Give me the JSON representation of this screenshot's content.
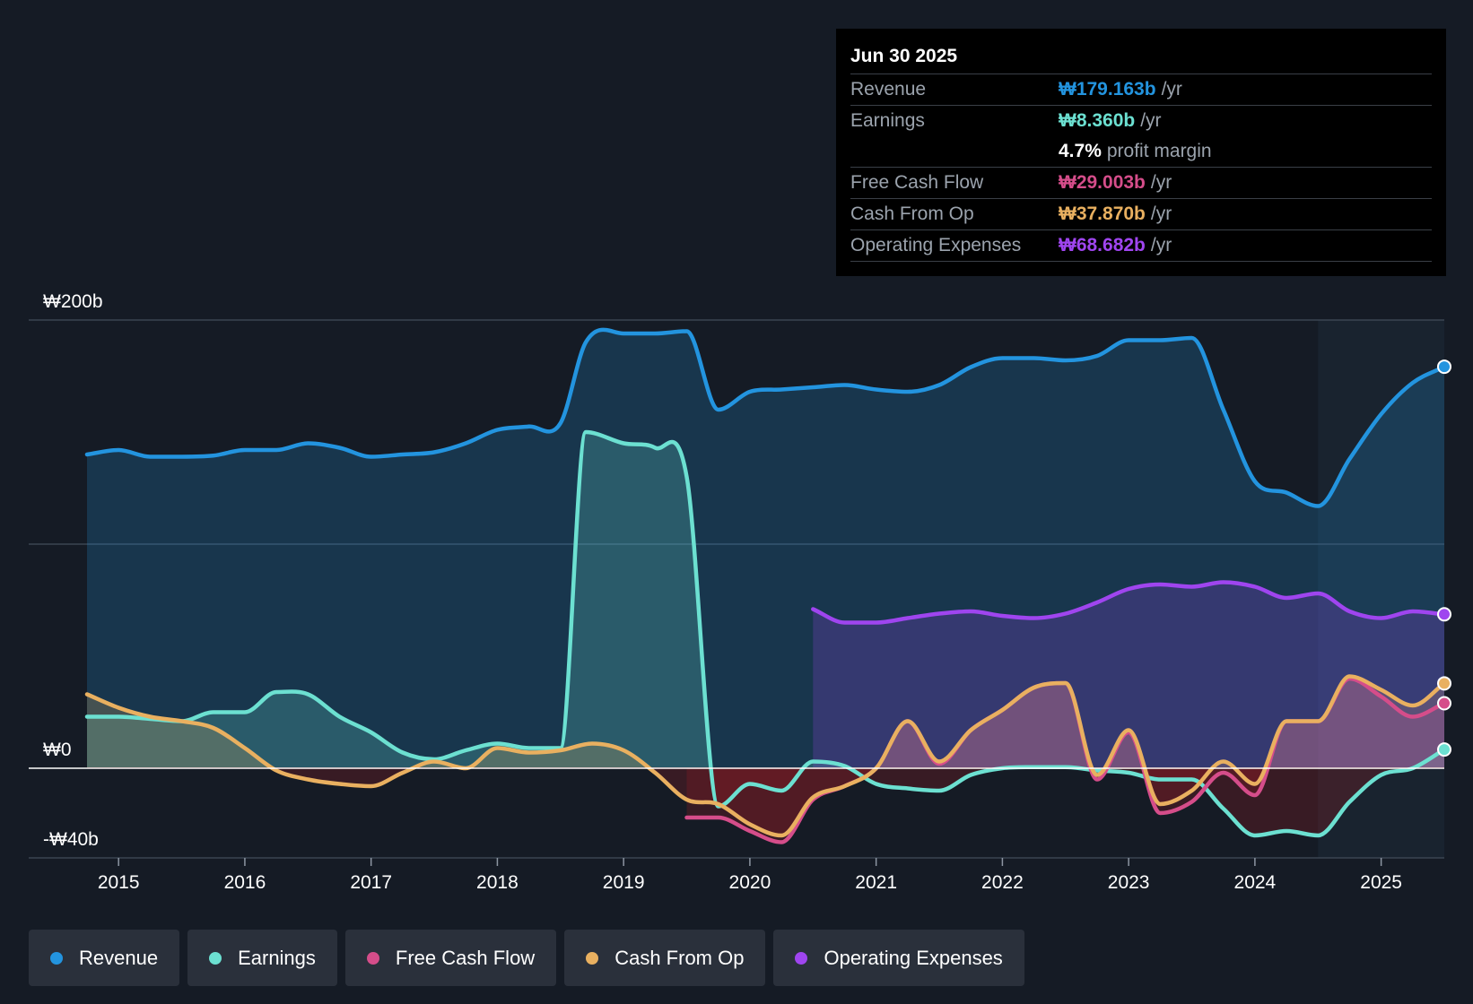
{
  "tooltip": {
    "date": "Jun 30 2025",
    "rows": [
      {
        "label": "Revenue",
        "value": "₩179.163b",
        "unit": "/yr",
        "color": "#2394df"
      },
      {
        "label": "Earnings",
        "value": "₩8.360b",
        "unit": "/yr",
        "color": "#6ce0d1"
      },
      {
        "label": "",
        "value": "4.7%",
        "unit": "profit margin",
        "color": "#ffffff"
      },
      {
        "label": "Free Cash Flow",
        "value": "₩29.003b",
        "unit": "/yr",
        "color": "#d54d8a"
      },
      {
        "label": "Cash From Op",
        "value": "₩37.870b",
        "unit": "/yr",
        "color": "#e9b060"
      },
      {
        "label": "Operating Expenses",
        "value": "₩68.682b",
        "unit": "/yr",
        "color": "#9f45ef"
      }
    ]
  },
  "legend": [
    {
      "label": "Revenue",
      "color": "#2394df"
    },
    {
      "label": "Earnings",
      "color": "#6ce0d1"
    },
    {
      "label": "Free Cash Flow",
      "color": "#d54d8a"
    },
    {
      "label": "Cash From Op",
      "color": "#e9b060"
    },
    {
      "label": "Operating Expenses",
      "color": "#9f45ef"
    }
  ],
  "chart_data": {
    "type": "area",
    "title": "",
    "xlabel": "",
    "ylabel": "",
    "y_unit": "₩b",
    "ylim": [
      -40,
      200
    ],
    "xlim": [
      2014.75,
      2025.5
    ],
    "forecast_start": 2024.5,
    "y_tick_labels": [
      {
        "value": 200,
        "label": "₩200b"
      },
      {
        "value": 0,
        "label": "₩0"
      },
      {
        "value": -40,
        "label": "-₩40b"
      }
    ],
    "x_ticks": [
      2015,
      2016,
      2017,
      2018,
      2019,
      2020,
      2021,
      2022,
      2023,
      2024,
      2025
    ],
    "series": [
      {
        "name": "Revenue",
        "color": "#2394df",
        "points": [
          [
            2014.75,
            140
          ],
          [
            2015,
            142
          ],
          [
            2015.25,
            139
          ],
          [
            2015.5,
            139
          ],
          [
            2015.75,
            139.5
          ],
          [
            2016,
            142
          ],
          [
            2016.25,
            142
          ],
          [
            2016.5,
            145
          ],
          [
            2016.75,
            143
          ],
          [
            2017,
            139
          ],
          [
            2017.25,
            140
          ],
          [
            2017.5,
            141
          ],
          [
            2017.75,
            145
          ],
          [
            2018,
            151
          ],
          [
            2018.25,
            152.5
          ],
          [
            2018.5,
            154
          ],
          [
            2018.7,
            190
          ],
          [
            2019,
            194
          ],
          [
            2019.25,
            194
          ],
          [
            2019.5,
            195
          ],
          [
            2019.75,
            160
          ],
          [
            2020,
            168
          ],
          [
            2020.25,
            169
          ],
          [
            2020.5,
            170
          ],
          [
            2020.75,
            171
          ],
          [
            2021,
            169
          ],
          [
            2021.25,
            168
          ],
          [
            2021.5,
            171
          ],
          [
            2021.75,
            179
          ],
          [
            2022,
            183
          ],
          [
            2022.25,
            183
          ],
          [
            2022.5,
            182
          ],
          [
            2022.75,
            184
          ],
          [
            2023,
            191
          ],
          [
            2023.25,
            191
          ],
          [
            2023.5,
            192
          ],
          [
            2023.75,
            160
          ],
          [
            2024,
            128
          ],
          [
            2024.25,
            123
          ],
          [
            2024.5,
            117
          ],
          [
            2024.75,
            138
          ],
          [
            2025,
            158
          ],
          [
            2025.25,
            172
          ],
          [
            2025.5,
            179.163
          ]
        ]
      },
      {
        "name": "Earnings",
        "color": "#6ce0d1",
        "points": [
          [
            2014.75,
            23
          ],
          [
            2015,
            23
          ],
          [
            2015.25,
            22
          ],
          [
            2015.5,
            21
          ],
          [
            2015.75,
            25
          ],
          [
            2016,
            25
          ],
          [
            2016.25,
            34
          ],
          [
            2016.5,
            33
          ],
          [
            2016.75,
            23
          ],
          [
            2017,
            16
          ],
          [
            2017.25,
            7
          ],
          [
            2017.5,
            4
          ],
          [
            2017.75,
            8
          ],
          [
            2018,
            11
          ],
          [
            2018.25,
            9
          ],
          [
            2018.5,
            9
          ],
          [
            2018.7,
            150
          ],
          [
            2019,
            145
          ],
          [
            2019.25,
            143
          ],
          [
            2019.5,
            130
          ],
          [
            2019.75,
            -17
          ],
          [
            2020,
            -7
          ],
          [
            2020.25,
            -10
          ],
          [
            2020.5,
            3
          ],
          [
            2020.75,
            1
          ],
          [
            2021,
            -7
          ],
          [
            2021.25,
            -9
          ],
          [
            2021.5,
            -10
          ],
          [
            2021.75,
            -3
          ],
          [
            2022,
            0
          ],
          [
            2022.25,
            0.5
          ],
          [
            2022.5,
            0.5
          ],
          [
            2022.75,
            -1
          ],
          [
            2023,
            -2
          ],
          [
            2023.25,
            -5
          ],
          [
            2023.5,
            -5
          ],
          [
            2023.75,
            -18
          ],
          [
            2024,
            -30
          ],
          [
            2024.25,
            -28
          ],
          [
            2024.5,
            -30
          ],
          [
            2024.75,
            -15
          ],
          [
            2025,
            -3
          ],
          [
            2025.25,
            0
          ],
          [
            2025.5,
            8.36
          ]
        ]
      },
      {
        "name": "Free Cash Flow",
        "color": "#d54d8a",
        "points": [
          [
            2019.5,
            -22
          ],
          [
            2019.75,
            -22
          ],
          [
            2020,
            -28
          ],
          [
            2020.25,
            -33
          ],
          [
            2020.5,
            -14
          ],
          [
            2020.75,
            -8
          ],
          [
            2021,
            0
          ],
          [
            2021.25,
            21
          ],
          [
            2021.5,
            2
          ],
          [
            2021.75,
            17
          ],
          [
            2022,
            26
          ],
          [
            2022.25,
            36
          ],
          [
            2022.5,
            38
          ],
          [
            2022.75,
            -5
          ],
          [
            2023,
            16
          ],
          [
            2023.25,
            -20
          ],
          [
            2023.5,
            -15
          ],
          [
            2023.75,
            -2
          ],
          [
            2024,
            -12
          ],
          [
            2024.25,
            21
          ],
          [
            2024.5,
            21
          ],
          [
            2024.75,
            40
          ],
          [
            2025,
            32
          ],
          [
            2025.25,
            23
          ],
          [
            2025.5,
            29.003
          ]
        ]
      },
      {
        "name": "Cash From Op",
        "color": "#e9b060",
        "points": [
          [
            2014.75,
            33
          ],
          [
            2015,
            27
          ],
          [
            2015.25,
            23
          ],
          [
            2015.5,
            21
          ],
          [
            2015.75,
            18
          ],
          [
            2016,
            9
          ],
          [
            2016.25,
            -1
          ],
          [
            2016.5,
            -5
          ],
          [
            2016.75,
            -7
          ],
          [
            2017,
            -8
          ],
          [
            2017.25,
            -2
          ],
          [
            2017.5,
            3
          ],
          [
            2017.75,
            0
          ],
          [
            2018,
            9
          ],
          [
            2018.25,
            7
          ],
          [
            2018.5,
            8
          ],
          [
            2018.75,
            11
          ],
          [
            2019,
            8
          ],
          [
            2019.25,
            -2
          ],
          [
            2019.5,
            -14
          ],
          [
            2019.75,
            -16
          ],
          [
            2020,
            -25
          ],
          [
            2020.25,
            -30
          ],
          [
            2020.5,
            -13
          ],
          [
            2020.75,
            -8
          ],
          [
            2021,
            0
          ],
          [
            2021.25,
            21
          ],
          [
            2021.5,
            3
          ],
          [
            2021.75,
            17
          ],
          [
            2022,
            26
          ],
          [
            2022.25,
            36
          ],
          [
            2022.5,
            38
          ],
          [
            2022.75,
            -3
          ],
          [
            2023,
            17
          ],
          [
            2023.25,
            -16
          ],
          [
            2023.5,
            -10
          ],
          [
            2023.75,
            3
          ],
          [
            2024,
            -7
          ],
          [
            2024.25,
            21
          ],
          [
            2024.5,
            21
          ],
          [
            2024.75,
            41
          ],
          [
            2025,
            35
          ],
          [
            2025.25,
            28
          ],
          [
            2025.5,
            37.87
          ]
        ]
      },
      {
        "name": "Operating Expenses",
        "color": "#9f45ef",
        "points": [
          [
            2020.5,
            71
          ],
          [
            2020.75,
            65
          ],
          [
            2021,
            65
          ],
          [
            2021.25,
            67
          ],
          [
            2021.5,
            69
          ],
          [
            2021.75,
            70
          ],
          [
            2022,
            68
          ],
          [
            2022.25,
            67
          ],
          [
            2022.5,
            69
          ],
          [
            2022.75,
            74
          ],
          [
            2023,
            80
          ],
          [
            2023.25,
            82
          ],
          [
            2023.5,
            81
          ],
          [
            2023.75,
            83
          ],
          [
            2024,
            81
          ],
          [
            2024.25,
            76
          ],
          [
            2024.5,
            78
          ],
          [
            2024.75,
            70
          ],
          [
            2025,
            67
          ],
          [
            2025.25,
            70
          ],
          [
            2025.5,
            68.682
          ]
        ]
      }
    ]
  }
}
